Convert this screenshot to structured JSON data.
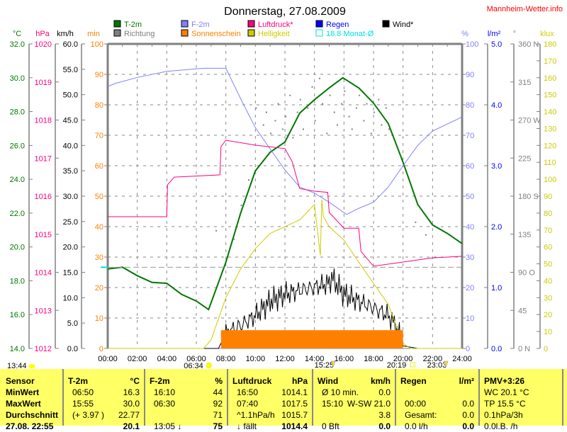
{
  "title": "Donnerstag, 27.08.2009",
  "brand": "Mannheim-Wetter.info",
  "legend": [
    {
      "label": "T-2m",
      "color": "#007700"
    },
    {
      "label": "Richtung",
      "color": "#808080"
    },
    {
      "label": "F-2m",
      "color": "#8080ff"
    },
    {
      "label": "Sonnenschein",
      "color": "#ff8000"
    },
    {
      "label": "Luftdruck*",
      "color": "#ff0080"
    },
    {
      "label": "Helligkeit",
      "color": "#cccc00"
    },
    {
      "label": "Regen",
      "color": "#0000ff"
    },
    {
      "label": "18.8 Monat-Ø",
      "color": "#00e0e0"
    },
    {
      "label": "Wind*",
      "color": "#000000"
    }
  ],
  "units": {
    "temp": "°C",
    "press": "hPa",
    "wind": "km/h",
    "sun": "min",
    "hum": "%",
    "rain": "l/m²",
    "dir": "°",
    "lux": "klux"
  },
  "chart_data": {
    "type": "line",
    "title": "Donnerstag, 27.08.2009",
    "x_ticks": [
      "00:00",
      "02:00",
      "04:00",
      "06:00",
      "08:00",
      "10:00",
      "12:00",
      "14:00",
      "16:00",
      "18:00",
      "20:00",
      "22:00",
      "24:00"
    ],
    "axes": {
      "temp": {
        "range": [
          14,
          32
        ],
        "ticks": [
          "14.0",
          "16.0",
          "18.0",
          "20.0",
          "22.0",
          "24.0",
          "26.0",
          "28.0",
          "30.0",
          "32.0"
        ]
      },
      "press": {
        "range": [
          1012,
          1020
        ],
        "ticks": [
          "1012",
          "1013",
          "1014",
          "1015",
          "1016",
          "1017",
          "1018",
          "1019",
          "1020"
        ]
      },
      "wind": {
        "range": [
          0,
          60
        ],
        "ticks": [
          "0.0",
          "5.0",
          "10.0",
          "15.0",
          "20.0",
          "25.0",
          "30.0",
          "35.0",
          "40.0",
          "45.0",
          "50.0",
          "55.0",
          "60.0"
        ]
      },
      "sun": {
        "range": [
          0,
          100
        ],
        "ticks": [
          "0",
          "10",
          "20",
          "30",
          "40",
          "50",
          "60",
          "70",
          "80",
          "90",
          "100"
        ]
      },
      "hum": {
        "range": [
          0,
          100
        ],
        "ticks": [
          "0",
          "10",
          "20",
          "30",
          "40",
          "50",
          "60",
          "70",
          "80",
          "90",
          "100"
        ]
      },
      "rain": {
        "range": [
          0,
          5
        ],
        "ticks": [
          "0.0",
          "1.0",
          "2.0",
          "3.0",
          "4.0",
          "5.0"
        ]
      },
      "dir": {
        "range": [
          0,
          360
        ],
        "ticks": [
          "0   N",
          "45",
          "90  O",
          "135",
          "180 S",
          "225",
          "270 W",
          "315",
          "360 N"
        ]
      },
      "lux": {
        "range": [
          0,
          180
        ],
        "ticks": [
          "0",
          "10",
          "20",
          "30",
          "40",
          "50",
          "60",
          "70",
          "80",
          "90",
          "100",
          "110",
          "120",
          "130",
          "140",
          "150",
          "160",
          "170",
          "180"
        ]
      }
    },
    "series": [
      {
        "name": "T-2m",
        "axis": "temp",
        "x": [
          0,
          1,
          2,
          3,
          4,
          5,
          6,
          6.83,
          7.5,
          8,
          9,
          10,
          11,
          12,
          13,
          14,
          15,
          15.92,
          17,
          18,
          19,
          20,
          21,
          22,
          23,
          24
        ],
        "y": [
          18.7,
          18.8,
          18.3,
          17.9,
          17.85,
          17.2,
          16.8,
          16.3,
          17.9,
          19.1,
          22.0,
          24.5,
          25.6,
          26.2,
          27.9,
          28.7,
          29.4,
          30.0,
          29.4,
          28.5,
          27.3,
          25.0,
          22.5,
          21.3,
          20.8,
          20.2
        ]
      },
      {
        "name": "F-2m",
        "axis": "hum",
        "x": [
          0,
          0.5,
          2,
          4,
          6.5,
          8,
          9,
          10,
          11,
          12,
          13,
          14,
          15,
          16.17,
          17,
          18,
          19,
          20,
          21,
          22,
          23,
          24
        ],
        "y": [
          86,
          87,
          89,
          91,
          92,
          92,
          82,
          72.5,
          65.5,
          58.6,
          53,
          51,
          48,
          44,
          46,
          48,
          53,
          60,
          66.7,
          71.4,
          73.7,
          76
        ]
      },
      {
        "name": "Luftdruck*",
        "axis": "press",
        "x": [
          0,
          4,
          4.05,
          4.5,
          7.6,
          7.67,
          8,
          10,
          12,
          12.5,
          13,
          14,
          14.9,
          15,
          16,
          17,
          17.15,
          18,
          20,
          22,
          24
        ],
        "y": [
          1015.46,
          1015.46,
          1016.3,
          1016.5,
          1016.56,
          1017.3,
          1017.47,
          1017.34,
          1017.25,
          1016.9,
          1016.2,
          1016.13,
          1016.1,
          1015.57,
          1015.16,
          1015.16,
          1014.55,
          1014.16,
          1014.27,
          1014.38,
          1014.42
        ]
      },
      {
        "name": "Wind*",
        "axis": "wind",
        "x": [
          0,
          7.5,
          8,
          9,
          10,
          11,
          12,
          13,
          14,
          15,
          15.17,
          16,
          17,
          18,
          19,
          19.5,
          20,
          21,
          24
        ],
        "y": [
          0,
          0,
          3,
          4.5,
          6.5,
          9.3,
          10.7,
          11.4,
          12.1,
          12.8,
          14,
          10.7,
          9.3,
          8,
          6.5,
          4.5,
          0.5,
          0,
          0
        ]
      },
      {
        "name": "Helligkeit",
        "axis": "lux",
        "x": [
          0,
          6.5,
          7,
          8,
          9,
          10,
          11,
          12,
          13,
          14,
          14.4,
          14.5,
          14.6,
          15,
          16,
          17,
          18,
          19,
          20,
          20.5,
          24
        ],
        "y": [
          0,
          0,
          5,
          30,
          47,
          59,
          68,
          72,
          76,
          85,
          55,
          88,
          78,
          72,
          64,
          51,
          38.5,
          26,
          3,
          0,
          0
        ]
      },
      {
        "name": "Sonnenschein",
        "axis": "sun",
        "type": "bar",
        "x": [
          7.67,
          20
        ],
        "y": [
          6,
          6
        ]
      },
      {
        "name": "18.8 Monat-Ø",
        "axis": "temp",
        "type": "hline",
        "y": [
          18.8
        ]
      }
    ],
    "direction_points": [
      [
        10,
        285
      ],
      [
        10.5,
        265
      ],
      [
        10.7,
        280
      ],
      [
        11,
        255
      ],
      [
        11.3,
        270
      ],
      [
        11.5,
        290
      ],
      [
        11.8,
        260
      ],
      [
        12,
        275
      ],
      [
        12.3,
        300
      ],
      [
        12.5,
        250
      ],
      [
        12.8,
        280
      ],
      [
        13,
        295
      ],
      [
        13.2,
        260
      ],
      [
        13.5,
        285
      ],
      [
        13.8,
        310
      ],
      [
        14,
        270
      ],
      [
        14.3,
        320
      ],
      [
        14.5,
        290
      ],
      [
        14.8,
        255
      ],
      [
        15,
        300
      ],
      [
        15.3,
        280
      ],
      [
        15.5,
        265
      ],
      [
        15.8,
        290
      ],
      [
        16,
        305
      ],
      [
        16.3,
        275
      ],
      [
        16.5,
        260
      ],
      [
        16.8,
        285
      ],
      [
        17,
        300
      ],
      [
        17.3,
        270
      ],
      [
        17.5,
        290
      ],
      [
        17.8,
        255
      ],
      [
        18,
        280
      ],
      [
        18.3,
        295
      ],
      [
        18.5,
        265
      ],
      [
        18.8,
        285
      ],
      [
        19,
        260
      ],
      [
        9.5,
        200
      ],
      [
        9,
        170
      ],
      [
        8.5,
        130
      ],
      [
        7.3,
        140
      ],
      [
        21.5,
        135
      ],
      [
        20.8,
        150
      ]
    ],
    "markers": [
      {
        "time": "13:44",
        "icon": "moon-rise"
      },
      {
        "time": "06:34",
        "icon": "sunrise"
      },
      {
        "time": "15:25",
        "icon": "moonphase"
      },
      {
        "time": "20:19",
        "icon": "sunset"
      },
      {
        "time": "23:03",
        "icon": "moonset"
      }
    ]
  },
  "table": {
    "sensor": [
      "Sensor",
      "MinWert",
      "MaxWert",
      "Durchschnitt",
      "27.08. 22:55"
    ],
    "t2m": {
      "head": "T-2m",
      "unit": "°C",
      "rows": [
        [
          "06:50",
          "16.3"
        ],
        [
          "15:55",
          "30.0"
        ],
        [
          "(+ 3.97 )",
          "22.77"
        ],
        [
          "",
          "20.1"
        ]
      ]
    },
    "f2m": {
      "head": "F-2m",
      "unit": "%",
      "rows": [
        [
          "16:10",
          "44"
        ],
        [
          "06:30",
          "92"
        ],
        [
          "",
          "71"
        ],
        [
          "13:05 ↓ ",
          "75"
        ]
      ]
    },
    "press": {
      "head": "Luftdruck",
      "unit": "hPa",
      "rows": [
        [
          "16:50",
          "1014.1"
        ],
        [
          "07:40",
          "1017.5"
        ],
        [
          "^1.1hPa/h",
          "1015.7"
        ],
        [
          "↓ fällt",
          "1014.4"
        ]
      ]
    },
    "wind": {
      "head": "Wind",
      "unit": "km/h",
      "rows": [
        [
          "Ø 10 min.",
          "0.0"
        ],
        [
          "15:10",
          "W-SW 21.0"
        ],
        [
          "",
          "3.8"
        ],
        [
          "0 Bft",
          "0.0"
        ]
      ]
    },
    "rain": {
      "head": "Regen",
      "unit": "l/m²",
      "rows": [
        [
          "",
          ""
        ],
        [
          "00:00",
          "0.0"
        ],
        [
          "Gesamt:",
          "0.0"
        ],
        [
          "0.0 l/h",
          "0.0"
        ]
      ]
    },
    "pmv": {
      "head": "PMV+3:26",
      "rows": [
        "WC 20.1 °C",
        "TP 15.5 °C",
        "0.1hPa/3h",
        "0.0l.B. /h"
      ]
    }
  }
}
